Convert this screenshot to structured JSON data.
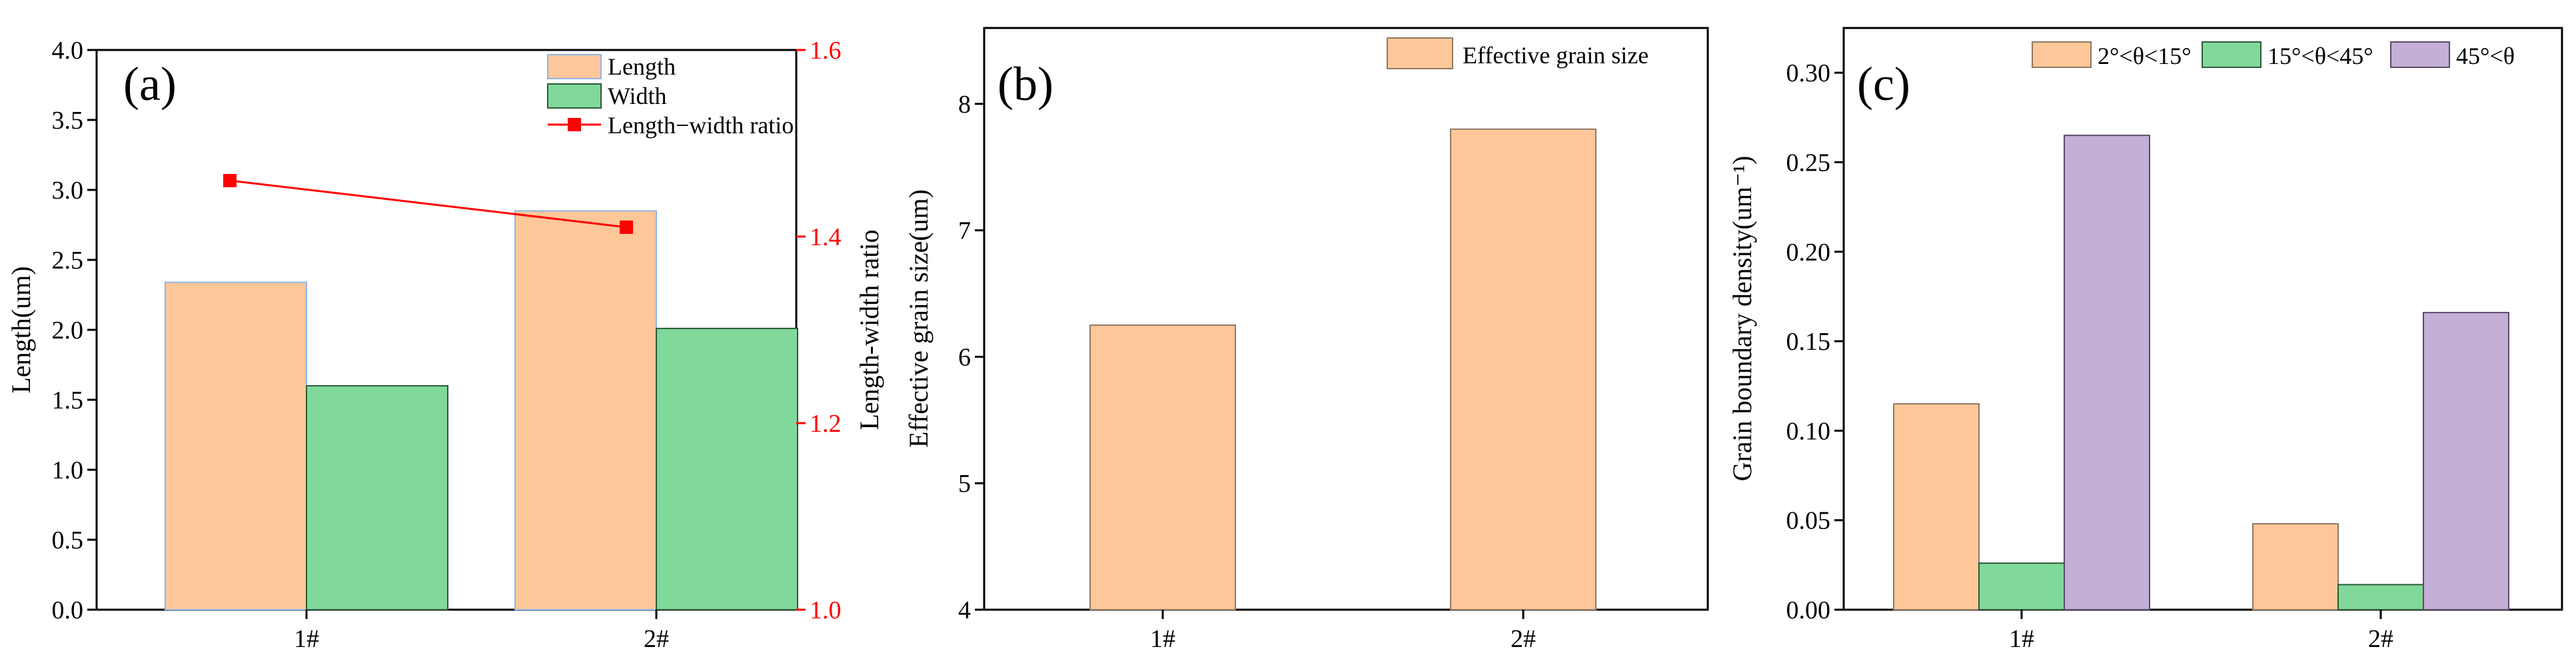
{
  "colors": {
    "orange": "#fdc799",
    "orange_edge": "#8f7a63",
    "green": "#80d99a",
    "green_edge": "#2c5a3a",
    "purple": "#c4afd6",
    "purple_edge": "#5a4a66",
    "red": "#ff0000",
    "length_edge": "#8fb5e8"
  },
  "chart_data": [
    {
      "panel_label": "(a)",
      "type": "bar",
      "categories": [
        "1#",
        "2#"
      ],
      "series": [
        {
          "name": "Length",
          "values": [
            2.34,
            2.85
          ],
          "axis": "left"
        },
        {
          "name": "Width",
          "values": [
            1.6,
            2.01
          ],
          "axis": "left"
        }
      ],
      "line_series": {
        "name": "Length−width ratio",
        "values": [
          1.46,
          1.41
        ],
        "axis": "right"
      },
      "ylabel": "Length(um)",
      "ylabel_right": "Length-width ratio",
      "ylim": [
        0,
        4.0
      ],
      "yticks": [
        "0.0",
        "0.5",
        "1.0",
        "1.5",
        "2.0",
        "2.5",
        "3.0",
        "3.5",
        "4.0"
      ],
      "ylim_right": [
        1.0,
        1.6
      ],
      "yticks_right": [
        "1.0",
        "1.2",
        "1.4",
        "1.6"
      ],
      "legend_position": "top-right",
      "grid": false
    },
    {
      "panel_label": "(b)",
      "type": "bar",
      "categories": [
        "1#",
        "2#"
      ],
      "series": [
        {
          "name": "Effective grain size",
          "values": [
            6.25,
            7.8
          ]
        }
      ],
      "ylabel": "Effective grain size(um)",
      "ylim": [
        4,
        8.6
      ],
      "yticks": [
        "4",
        "5",
        "6",
        "7",
        "8"
      ],
      "legend_position": "top-right",
      "grid": false
    },
    {
      "panel_label": "(c)",
      "type": "bar",
      "categories": [
        "1#",
        "2#"
      ],
      "series": [
        {
          "name": "2°<θ<15°",
          "values": [
            0.115,
            0.048
          ]
        },
        {
          "name": "15°<θ<45°",
          "values": [
            0.026,
            0.014
          ]
        },
        {
          "name": "45°<θ",
          "values": [
            0.265,
            0.166
          ]
        }
      ],
      "ylabel": "Grain boundary density(um⁻¹)",
      "ylim": [
        0,
        0.325
      ],
      "yticks": [
        "0.00",
        "0.05",
        "0.10",
        "0.15",
        "0.20",
        "0.25",
        "0.30"
      ],
      "legend_position": "top",
      "grid": false
    }
  ]
}
